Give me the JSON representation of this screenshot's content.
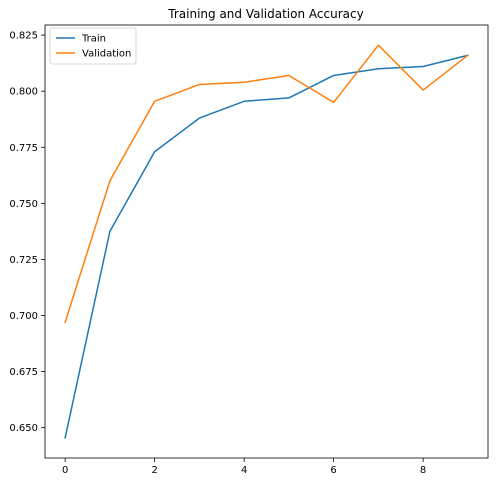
{
  "chart_data": {
    "type": "line",
    "title": "Training and Validation Accuracy",
    "xlabel": "",
    "ylabel": "",
    "x": [
      0,
      1,
      2,
      3,
      4,
      5,
      6,
      7,
      8,
      9
    ],
    "xlim": [
      -0.45,
      9.45
    ],
    "ylim": [
      0.6365,
      0.8295
    ],
    "xticks": [
      0,
      2,
      4,
      6,
      8
    ],
    "xtick_labels": [
      "0",
      "2",
      "4",
      "6",
      "8"
    ],
    "yticks": [
      0.65,
      0.675,
      0.7,
      0.725,
      0.75,
      0.775,
      0.8,
      0.825
    ],
    "ytick_labels": [
      "0.650",
      "0.675",
      "0.700",
      "0.725",
      "0.750",
      "0.775",
      "0.800",
      "0.825"
    ],
    "grid": false,
    "legend_position": "top-left",
    "series": [
      {
        "name": "Train",
        "color": "#1f77b4",
        "values": [
          0.6455,
          0.7375,
          0.773,
          0.788,
          0.7955,
          0.797,
          0.807,
          0.81,
          0.811,
          0.816
        ]
      },
      {
        "name": "Validation",
        "color": "#ff7f0e",
        "values": [
          0.697,
          0.76,
          0.7955,
          0.803,
          0.804,
          0.807,
          0.795,
          0.8205,
          0.8005,
          0.816
        ]
      }
    ]
  }
}
